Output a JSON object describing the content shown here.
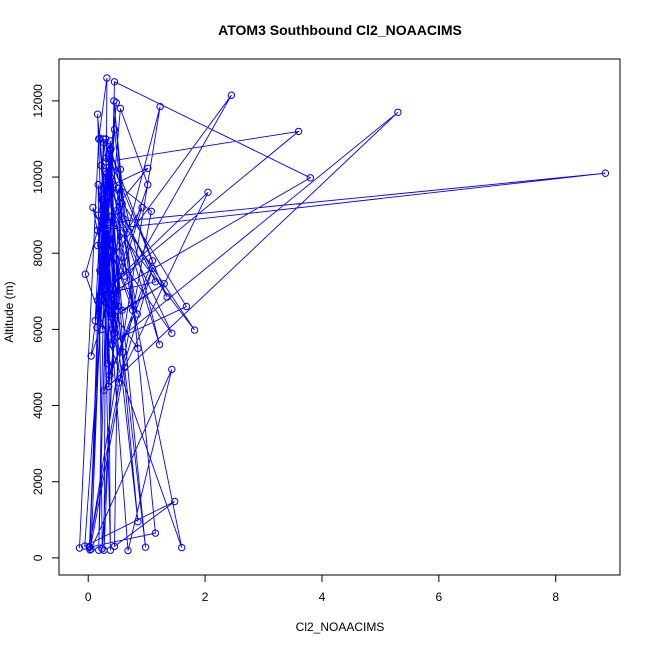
{
  "chart_data": {
    "type": "line",
    "title": "ATOM3 Southbound Cl2_NOAACIMS",
    "xlabel": "Cl2_NOAACIMS",
    "ylabel": "Altitude (m)",
    "xlim": [
      -0.5,
      9.1
    ],
    "ylim": [
      -450,
      13100
    ],
    "xticks": [
      0,
      2,
      4,
      6,
      8
    ],
    "yticks": [
      0,
      2000,
      4000,
      6000,
      8000,
      10000,
      12000
    ],
    "grid": false,
    "legend": "none",
    "color": "#0000ff",
    "series": [
      {
        "x": [
          -0.15,
          0.18,
          0.32,
          0.27,
          0.55,
          0.45,
          1.48,
          -0.06,
          0.45,
          0.58,
          0.24,
          0.17,
          0.32,
          0.68,
          1.43,
          0.05,
          0.31,
          0.18,
          0.36,
          0.98,
          0.22,
          0.42,
          0.16,
          0.26,
          0.34,
          1.08,
          0.02,
          0.28,
          0.37,
          1.23,
          0.02,
          0.31,
          0.48,
          0.21,
          0.3,
          1.6,
          -0.05,
          0.27,
          0.35,
          0.52,
          0.38,
          0.84,
          0.08,
          0.41,
          0.2,
          0.47,
          0.39,
          1.22,
          0.32,
          0.22,
          0.15,
          0.38,
          1.35,
          0.61,
          0.44,
          1.15,
          0.02,
          0.27,
          0.44,
          0.38,
          0.16,
          3.8,
          0.45,
          0.33,
          0.28,
          2.05,
          0.62,
          0.03,
          0.26,
          0.36,
          0.6,
          0.16,
          0.31,
          0.85,
          0.24,
          0.41,
          1.3,
          0.58,
          0.27,
          0.12,
          0.33,
          0.38,
          0.24,
          0.22,
          0.44,
          0.42,
          1.02,
          0.3,
          0.37,
          1.1,
          0.3,
          0.76,
          0.17,
          0.32,
          1.68,
          0.43,
          0.27,
          1.82,
          0.37,
          1.43,
          0.38,
          0.52,
          1.1,
          0.27,
          5.3,
          0.41,
          0.3,
          0.85,
          0.52,
          0.24,
          0.38,
          0.16,
          8.85,
          0.33,
          0.42,
          0.2,
          0.92,
          0.37,
          2.45,
          0.32,
          0.55,
          1.02,
          0.05,
          0.33,
          0.62,
          0.3,
          3.6,
          0.2,
          1.15,
          0.38
        ],
        "y": [
          260,
          11000,
          12600,
          200,
          10200,
          300,
          1480,
          310,
          11250,
          9300,
          240,
          9800,
          7500,
          190,
          4950,
          230,
          10500,
          200,
          9900,
          280,
          10300,
          6400,
          11650,
          7200,
          10000,
          9100,
          300,
          8400,
          6800,
          11850,
          280,
          9600,
          11950,
          6900,
          10150,
          270,
          7450,
          9200,
          4500,
          6600,
          10700,
          6400,
          9200,
          6600,
          11020,
          6500,
          10750,
          5600,
          10100,
          8200,
          6050,
          10450,
          6850,
          8900,
          12000,
          650,
          280,
          9700,
          5900,
          10950,
          6750,
          9980,
          12500,
          5100,
          7000,
          9600,
          5000,
          210,
          11000,
          10600,
          5400,
          8200,
          9800,
          950,
          9400,
          6300,
          7200,
          6500,
          10900,
          6230,
          9500,
          200,
          9500,
          7500,
          6600,
          9800,
          10230,
          8900,
          4800,
          7800,
          11000,
          6500,
          9000,
          9990,
          6600,
          5700,
          9100,
          5980,
          9300,
          5900,
          8200,
          4600,
          7600,
          4400,
          11700,
          5600,
          6700,
          5500,
          9700,
          6000,
          10000,
          8600,
          10100,
          8800,
          6000,
          7550,
          9200,
          6500,
          12150,
          7700,
          11800,
          9800,
          5300,
          8600,
          7400,
          10400,
          11200,
          6900,
          7250,
          9700
        ]
      }
    ]
  }
}
